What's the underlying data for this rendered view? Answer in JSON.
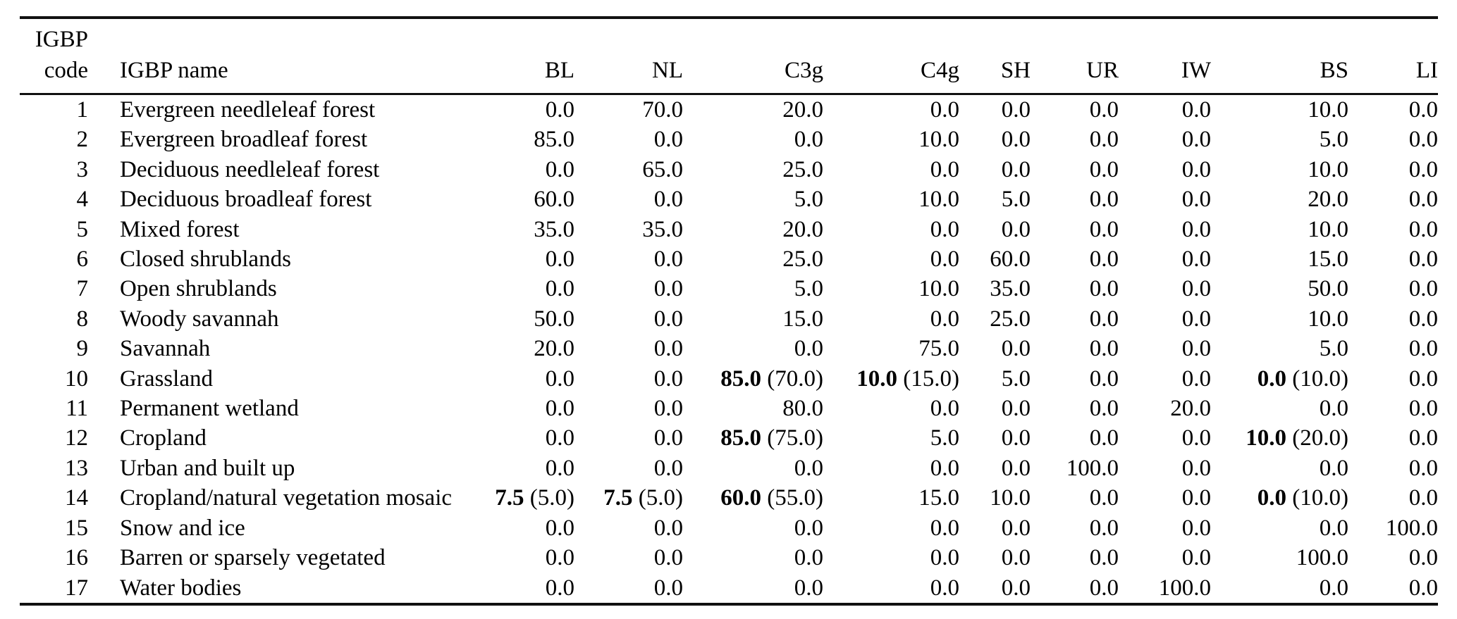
{
  "table": {
    "header": {
      "code_line1": "IGBP",
      "code_line2": "code",
      "name": "IGBP name",
      "columns": [
        "BL",
        "NL",
        "C3g",
        "C4g",
        "SH",
        "UR",
        "IW",
        "BS",
        "LI"
      ]
    },
    "rows": [
      {
        "code": "1",
        "name": "Evergreen needleleaf forest",
        "values": [
          "0.0",
          "70.0",
          "20.0",
          "0.0",
          "0.0",
          "0.0",
          "0.0",
          "10.0",
          "0.0"
        ]
      },
      {
        "code": "2",
        "name": "Evergreen broadleaf forest",
        "values": [
          "85.0",
          "0.0",
          "0.0",
          "10.0",
          "0.0",
          "0.0",
          "0.0",
          "5.0",
          "0.0"
        ]
      },
      {
        "code": "3",
        "name": "Deciduous needleleaf forest",
        "values": [
          "0.0",
          "65.0",
          "25.0",
          "0.0",
          "0.0",
          "0.0",
          "0.0",
          "10.0",
          "0.0"
        ]
      },
      {
        "code": "4",
        "name": "Deciduous broadleaf forest",
        "values": [
          "60.0",
          "0.0",
          "5.0",
          "10.0",
          "5.0",
          "0.0",
          "0.0",
          "20.0",
          "0.0"
        ]
      },
      {
        "code": "5",
        "name": "Mixed forest",
        "values": [
          "35.0",
          "35.0",
          "20.0",
          "0.0",
          "0.0",
          "0.0",
          "0.0",
          "10.0",
          "0.0"
        ]
      },
      {
        "code": "6",
        "name": "Closed shrublands",
        "values": [
          "0.0",
          "0.0",
          "25.0",
          "0.0",
          "60.0",
          "0.0",
          "0.0",
          "15.0",
          "0.0"
        ]
      },
      {
        "code": "7",
        "name": "Open shrublands",
        "values": [
          "0.0",
          "0.0",
          "5.0",
          "10.0",
          "35.0",
          "0.0",
          "0.0",
          "50.0",
          "0.0"
        ]
      },
      {
        "code": "8",
        "name": "Woody savannah",
        "values": [
          "50.0",
          "0.0",
          "15.0",
          "0.0",
          "25.0",
          "0.0",
          "0.0",
          "10.0",
          "0.0"
        ]
      },
      {
        "code": "9",
        "name": "Savannah",
        "values": [
          "20.0",
          "0.0",
          "0.0",
          "75.0",
          "0.0",
          "0.0",
          "0.0",
          "5.0",
          "0.0"
        ]
      },
      {
        "code": "10",
        "name": "Grassland",
        "values": [
          "0.0",
          "0.0",
          {
            "bold": "85.0",
            "paren": "(70.0)"
          },
          {
            "bold": "10.0",
            "paren": "(15.0)"
          },
          "5.0",
          "0.0",
          "0.0",
          {
            "bold": "0.0",
            "paren": "(10.0)"
          },
          "0.0"
        ]
      },
      {
        "code": "11",
        "name": "Permanent wetland",
        "values": [
          "0.0",
          "0.0",
          "80.0",
          "0.0",
          "0.0",
          "0.0",
          "20.0",
          "0.0",
          "0.0"
        ]
      },
      {
        "code": "12",
        "name": "Cropland",
        "values": [
          "0.0",
          "0.0",
          {
            "bold": "85.0",
            "paren": "(75.0)"
          },
          "5.0",
          "0.0",
          "0.0",
          "0.0",
          {
            "bold": "10.0",
            "paren": "(20.0)"
          },
          "0.0"
        ]
      },
      {
        "code": "13",
        "name": "Urban and built up",
        "values": [
          "0.0",
          "0.0",
          "0.0",
          "0.0",
          "0.0",
          "100.0",
          "0.0",
          "0.0",
          "0.0"
        ]
      },
      {
        "code": "14",
        "name": "Cropland/natural vegetation mosaic",
        "values": [
          {
            "bold": "7.5",
            "paren": "(5.0)"
          },
          {
            "bold": "7.5",
            "paren": "(5.0)"
          },
          {
            "bold": "60.0",
            "paren": "(55.0)"
          },
          "15.0",
          "10.0",
          "0.0",
          "0.0",
          {
            "bold": "0.0",
            "paren": "(10.0)"
          },
          "0.0"
        ]
      },
      {
        "code": "15",
        "name": "Snow and ice",
        "values": [
          "0.0",
          "0.0",
          "0.0",
          "0.0",
          "0.0",
          "0.0",
          "0.0",
          "0.0",
          "100.0"
        ]
      },
      {
        "code": "16",
        "name": "Barren or sparsely vegetated",
        "values": [
          "0.0",
          "0.0",
          "0.0",
          "0.0",
          "0.0",
          "0.0",
          "0.0",
          "100.0",
          "0.0"
        ]
      },
      {
        "code": "17",
        "name": "Water bodies",
        "values": [
          "0.0",
          "0.0",
          "0.0",
          "0.0",
          "0.0",
          "0.0",
          "100.0",
          "0.0",
          "0.0"
        ]
      }
    ]
  }
}
